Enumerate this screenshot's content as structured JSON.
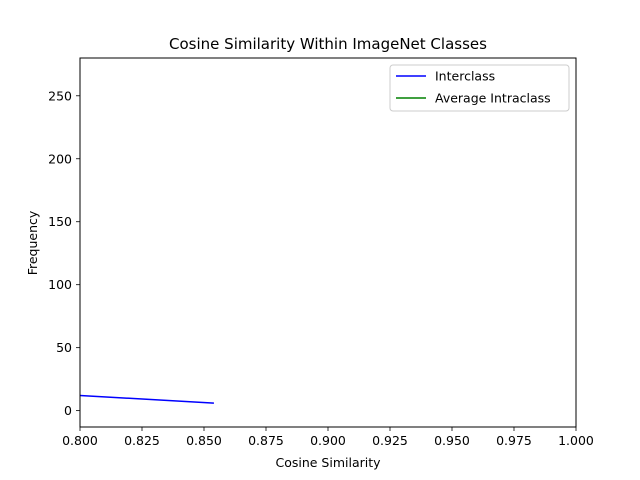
{
  "chart_data": {
    "type": "line",
    "title": "Cosine Similarity Within ImageNet Classes",
    "xlabel": "Cosine Similarity",
    "ylabel": "Frequency",
    "xlim": [
      0.8,
      1.0
    ],
    "ylim": [
      -13,
      280
    ],
    "x_ticks": [
      "0.800",
      "0.825",
      "0.850",
      "0.875",
      "0.900",
      "0.925",
      "0.950",
      "0.975",
      "1.000"
    ],
    "y_ticks": [
      "0",
      "50",
      "100",
      "150",
      "200",
      "250"
    ],
    "grid": false,
    "legend_position": "top-right",
    "series": [
      {
        "name": "Interclass",
        "color": "#0000ff",
        "x": [
          0.8,
          0.854
        ],
        "y": [
          12,
          6
        ]
      },
      {
        "name": "Average Intraclass",
        "color": "#008000",
        "x": [],
        "y": []
      }
    ]
  }
}
